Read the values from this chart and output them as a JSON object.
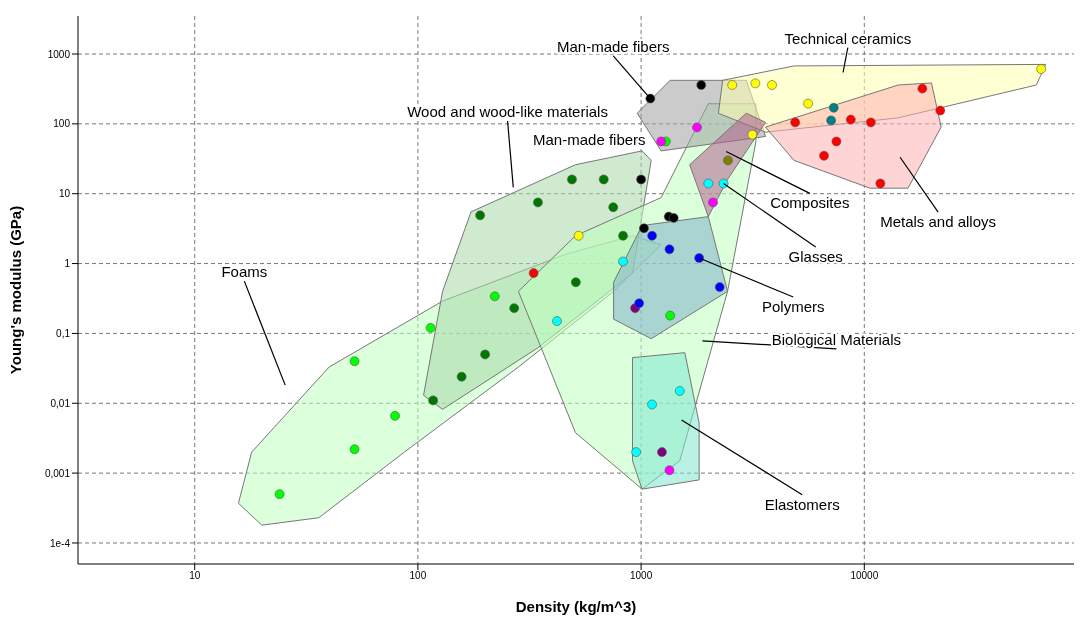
{
  "chart_data": {
    "type": "scatter",
    "xlabel": "Density (kg/m^3)",
    "ylabel": "Young's modulus (GPa)",
    "log": "xy",
    "grid": true,
    "legend": false,
    "marker": "circle",
    "xlim": [
      3,
      87000
    ],
    "xticks": [
      10,
      100,
      1000,
      10000
    ],
    "ylim": [
      5e-05,
      3500
    ],
    "yticks": [
      {
        "value": 0.0001,
        "label": "1e-4"
      },
      {
        "value": 0.001,
        "label": "0,001"
      },
      {
        "value": 0.01,
        "label": "0,01"
      },
      {
        "value": 0.1,
        "label": "0,1"
      },
      1,
      10,
      100,
      1000
    ],
    "series": [
      {
        "type": "area",
        "marker": "none",
        "color": "#c0ffc0",
        "x": [
          15.7,
          18,
          40,
          129,
          461,
          915,
          1230,
          753,
          282,
          87,
          36,
          20,
          15.7
        ],
        "values": [
          0.00037,
          0.002,
          0.033,
          0.29,
          1.36,
          2.5,
          1.86,
          0.4,
          0.033,
          0.002,
          0.00023,
          0.00018,
          0.00037
        ]
      },
      {
        "type": "area",
        "marker": "none",
        "color": "#a8d8a8",
        "x": [
          106,
          129,
          173,
          508,
          1010,
          1110,
          915,
          344,
          129,
          106
        ],
        "values": [
          0.013,
          0.4,
          5.5,
          26,
          41,
          30,
          0.73,
          0.062,
          0.0082,
          0.013
        ]
      },
      {
        "type": "area",
        "marker": "none",
        "color": "#c0ffc0",
        "x": [
          282,
          508,
          1230,
          2000,
          3270,
          3270,
          2440,
          1490,
          1010,
          508,
          282
        ],
        "values": [
          0.4,
          2.5,
          8.8,
          194,
          194,
          56,
          0.4,
          0.0015,
          0.00059,
          0.0038,
          0.4
        ]
      },
      {
        "type": "area",
        "marker": "none",
        "color": "#7fb0c8",
        "x": [
          753,
          1010,
          2000,
          2440,
          1110,
          753,
          753
        ],
        "values": [
          0.54,
          3.5,
          4.7,
          0.4,
          0.084,
          0.16,
          0.54
        ]
      },
      {
        "type": "area",
        "marker": "none",
        "color": "#a0a0a0",
        "x": [
          960,
          1350,
          2960,
          3610,
          1230,
          960
        ],
        "values": [
          142,
          420,
          420,
          66,
          41,
          142
        ]
      },
      {
        "type": "area",
        "marker": "none",
        "color": "#ffffb0",
        "x": [
          2320,
          4840,
          65000,
          59000,
          14200,
          3610,
          2220,
          2320
        ],
        "values": [
          420,
          675,
          710,
          360,
          122,
          76,
          142,
          420
        ]
      },
      {
        "type": "area",
        "marker": "none",
        "color": "#ffb0b0",
        "x": [
          3610,
          14200,
          20000,
          22100,
          15700,
          10600,
          4840,
          3610
        ],
        "values": [
          90,
          360,
          385,
          90,
          12,
          12,
          30,
          90
        ]
      },
      {
        "type": "area",
        "marker": "none",
        "color": "#b06090",
        "x": [
          1650,
          2960,
          3610,
          2440,
          2000,
          1650
        ],
        "values": [
          26,
          142,
          105,
          16,
          4.7,
          26
        ]
      },
      {
        "type": "area",
        "marker": "none",
        "color": "#80e8d0",
        "x": [
          915,
          1570,
          1820,
          1820,
          1010,
          915,
          915
        ],
        "values": [
          0.045,
          0.053,
          0.0052,
          0.0008,
          0.00059,
          0.0015,
          0.045
        ]
      },
      {
        "color": "#00ff00",
        "x": [
          24,
          52,
          52,
          79,
          114,
          221,
          1290,
          1350
        ],
        "values": [
          0.0005,
          0.04,
          0.0022,
          0.0066,
          0.12,
          0.34,
          56,
          0.18
        ]
      },
      {
        "color": "#007700",
        "x": [
          270,
          190,
          345,
          680,
          750,
          830,
          200,
          157,
          117,
          510,
          490
        ],
        "values": [
          0.23,
          4.9,
          7.5,
          16,
          6.4,
          2.5,
          0.05,
          0.024,
          0.011,
          0.54,
          16
        ]
      },
      {
        "color": "#00ffff",
        "x": [
          420,
          830,
          950,
          1120,
          1490,
          2000,
          2340
        ],
        "values": [
          0.15,
          1.07,
          0.002,
          0.0096,
          0.015,
          14,
          14
        ]
      },
      {
        "color": "#ff0000",
        "x": [
          330,
          18200,
          21900,
          10700,
          4900,
          6600,
          11800,
          7500,
          8700
        ],
        "values": [
          0.73,
          320,
          155,
          105,
          105,
          35,
          14,
          56,
          115
        ]
      },
      {
        "color": "#ffff00",
        "x": [
          525,
          2560,
          3250,
          3860,
          62000,
          5600,
          3150
        ],
        "values": [
          2.5,
          360,
          380,
          360,
          610,
          195,
          70
        ]
      },
      {
        "color": "#800080",
        "x": [
          940,
          1240
        ],
        "values": [
          0.23,
          0.002
        ]
      },
      {
        "color": "#ff00ff",
        "x": [
          1230,
          1340,
          2100,
          1780
        ],
        "values": [
          56,
          0.0011,
          7.5,
          89
        ]
      },
      {
        "color": "#0000ff",
        "x": [
          1120,
          1340,
          1820,
          2250,
          980
        ],
        "values": [
          2.5,
          1.6,
          1.2,
          0.46,
          0.27
        ]
      },
      {
        "color": "#000000",
        "x": [
          1860,
          1100,
          1000,
          1330,
          1400,
          1030
        ],
        "values": [
          360,
          230,
          16,
          4.7,
          4.5,
          3.2
        ]
      },
      {
        "color": "#008080",
        "x": [
          7300,
          7100
        ],
        "values": [
          170,
          112
        ]
      },
      {
        "color": "#808000",
        "x": [
          2450
        ],
        "values": [
          30
        ]
      }
    ],
    "annotations": [
      "Foams",
      "Wood and wood-like materials",
      {
        "text": "Man-made fibers",
        "x": 1100,
        "y": 230
      },
      "Man-made fibers",
      "Technical ceramics",
      "Composites",
      "Metals and alloys",
      {
        "text": "Glasses",
        "x": 2340,
        "y": 14
      },
      {
        "text": "Polymers",
        "x": 1820,
        "y": 1.2
      },
      "Biological Materials",
      "Elastomers"
    ]
  }
}
